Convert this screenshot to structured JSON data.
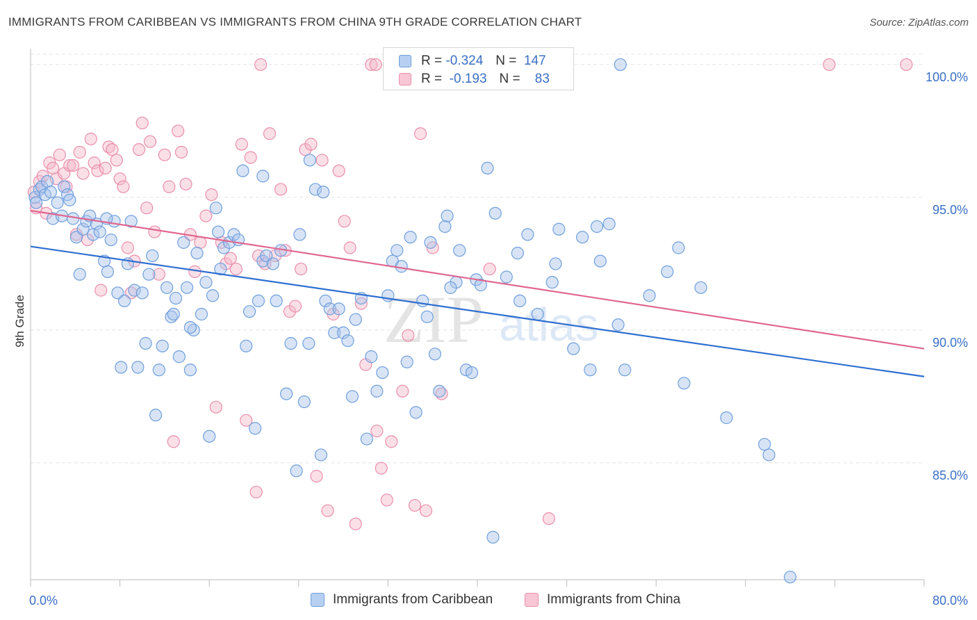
{
  "title": "IMMIGRANTS FROM CARIBBEAN VS IMMIGRANTS FROM CHINA 9TH GRADE CORRELATION CHART",
  "source": "Source: ZipAtlas.com",
  "watermark": {
    "zip": "ZIP",
    "atlas": "atlas"
  },
  "stats": {
    "caribbean": {
      "r_label": "R =",
      "r_value": "-0.324",
      "n_label": "N =",
      "n_value": "147"
    },
    "china": {
      "r_label": "R =",
      "r_value": "-0.193",
      "n_label": "N =",
      "n_value": "83"
    }
  },
  "colors": {
    "caribbean_fill": "#a9c4ec",
    "caribbean_stroke": "#6f9fdc",
    "caribbean_line": "#2f6fd0",
    "china_fill": "#f5b8c9",
    "china_stroke": "#ea8fab",
    "china_line": "#e06690",
    "tick_label": "#3a6fc4",
    "grid": "#e3e3e3"
  },
  "chart_data": {
    "type": "scatter",
    "title": "IMMIGRANTS FROM CARIBBEAN VS IMMIGRANTS FROM CHINA 9TH GRADE CORRELATION CHART",
    "xlabel": "",
    "ylabel": "9th Grade",
    "xlim": [
      0,
      80
    ],
    "ylim": [
      80.6,
      100.6
    ],
    "x_tick_labels": [
      "0.0%",
      "80.0%"
    ],
    "y_ticks": [
      85,
      90,
      95,
      100
    ],
    "y_tick_labels": [
      "85.0%",
      "90.0%",
      "95.0%",
      "100.0%"
    ],
    "grid": true,
    "legend_position": "bottom",
    "series": [
      {
        "name": "Immigrants from Caribbean",
        "trend": {
          "x": [
            0,
            80
          ],
          "y": [
            93.15,
            88.25
          ]
        },
        "points": [
          [
            0.4,
            95.0
          ],
          [
            0.5,
            94.8
          ],
          [
            0.8,
            95.3
          ],
          [
            1.0,
            95.4
          ],
          [
            1.3,
            95.1
          ],
          [
            1.5,
            95.6
          ],
          [
            1.8,
            95.2
          ],
          [
            2.0,
            94.2
          ],
          [
            2.4,
            94.8
          ],
          [
            2.8,
            94.3
          ],
          [
            3.0,
            95.4
          ],
          [
            3.3,
            95.1
          ],
          [
            3.5,
            94.9
          ],
          [
            3.8,
            94.2
          ],
          [
            4.1,
            93.5
          ],
          [
            4.4,
            92.1
          ],
          [
            4.7,
            93.8
          ],
          [
            5.0,
            94.1
          ],
          [
            5.3,
            94.3
          ],
          [
            5.6,
            93.6
          ],
          [
            5.9,
            94.0
          ],
          [
            6.2,
            93.7
          ],
          [
            6.6,
            92.6
          ],
          [
            6.9,
            92.2
          ],
          [
            7.2,
            93.4
          ],
          [
            7.5,
            94.1
          ],
          [
            7.8,
            91.4
          ],
          [
            8.1,
            88.6
          ],
          [
            8.4,
            91.1
          ],
          [
            8.7,
            92.5
          ],
          [
            9.0,
            94.1
          ],
          [
            9.3,
            91.5
          ],
          [
            9.6,
            88.6
          ],
          [
            10.0,
            91.4
          ],
          [
            10.3,
            89.5
          ],
          [
            10.6,
            92.1
          ],
          [
            10.9,
            92.8
          ],
          [
            11.2,
            86.8
          ],
          [
            11.5,
            88.5
          ],
          [
            11.8,
            89.4
          ],
          [
            12.2,
            91.6
          ],
          [
            12.6,
            90.5
          ],
          [
            12.8,
            90.6
          ],
          [
            13.0,
            91.2
          ],
          [
            13.3,
            89.0
          ],
          [
            13.7,
            93.3
          ],
          [
            14.0,
            91.6
          ],
          [
            14.3,
            88.5
          ],
          [
            14.6,
            90.0
          ],
          [
            14.9,
            92.9
          ],
          [
            15.3,
            90.6
          ],
          [
            15.7,
            91.8
          ],
          [
            16.0,
            86.0
          ],
          [
            16.3,
            91.3
          ],
          [
            16.6,
            94.6
          ],
          [
            17.0,
            92.3
          ],
          [
            17.3,
            93.1
          ],
          [
            17.8,
            93.3
          ],
          [
            18.2,
            93.6
          ],
          [
            18.6,
            93.4
          ],
          [
            19.0,
            96.0
          ],
          [
            19.3,
            89.4
          ],
          [
            19.6,
            90.7
          ],
          [
            20.1,
            86.3
          ],
          [
            20.4,
            91.1
          ],
          [
            20.8,
            92.6
          ],
          [
            21.1,
            92.8
          ],
          [
            21.7,
            92.5
          ],
          [
            22.0,
            91.1
          ],
          [
            22.4,
            93.0
          ],
          [
            22.9,
            87.6
          ],
          [
            23.3,
            89.5
          ],
          [
            23.8,
            84.7
          ],
          [
            24.1,
            93.6
          ],
          [
            24.5,
            87.3
          ],
          [
            25.0,
            96.4
          ],
          [
            25.5,
            95.3
          ],
          [
            26.0,
            85.3
          ],
          [
            26.4,
            91.1
          ],
          [
            26.8,
            90.8
          ],
          [
            27.2,
            89.9
          ],
          [
            27.6,
            90.8
          ],
          [
            28.0,
            89.9
          ],
          [
            28.4,
            89.6
          ],
          [
            28.8,
            87.5
          ],
          [
            29.1,
            90.4
          ],
          [
            29.6,
            91.2
          ],
          [
            30.1,
            85.9
          ],
          [
            30.5,
            89.0
          ],
          [
            31.0,
            87.7
          ],
          [
            31.5,
            88.4
          ],
          [
            32.0,
            91.3
          ],
          [
            32.4,
            92.6
          ],
          [
            32.8,
            93.0
          ],
          [
            33.2,
            92.4
          ],
          [
            33.7,
            88.8
          ],
          [
            34.0,
            93.5
          ],
          [
            34.5,
            86.9
          ],
          [
            35.1,
            91.1
          ],
          [
            35.5,
            90.5
          ],
          [
            35.8,
            93.3
          ],
          [
            36.2,
            89.1
          ],
          [
            36.6,
            87.7
          ],
          [
            37.1,
            93.9
          ],
          [
            37.3,
            94.3
          ],
          [
            38.1,
            91.8
          ],
          [
            38.4,
            93.0
          ],
          [
            39.0,
            88.5
          ],
          [
            39.5,
            88.4
          ],
          [
            39.9,
            91.9
          ],
          [
            40.3,
            91.7
          ],
          [
            40.9,
            96.1
          ],
          [
            41.4,
            82.2
          ],
          [
            41.6,
            94.4
          ],
          [
            42.6,
            92.0
          ],
          [
            43.6,
            92.9
          ],
          [
            44.5,
            93.6
          ],
          [
            45.4,
            90.6
          ],
          [
            46.7,
            91.8
          ],
          [
            47.0,
            92.5
          ],
          [
            47.3,
            93.8
          ],
          [
            48.6,
            89.3
          ],
          [
            49.4,
            93.5
          ],
          [
            50.1,
            88.5
          ],
          [
            50.7,
            93.9
          ],
          [
            51.0,
            92.6
          ],
          [
            51.8,
            94.0
          ],
          [
            52.6,
            90.2
          ],
          [
            53.2,
            88.5
          ],
          [
            55.4,
            91.3
          ],
          [
            57.0,
            92.2
          ],
          [
            58.0,
            93.1
          ],
          [
            58.5,
            88.0
          ],
          [
            60.0,
            91.6
          ],
          [
            62.3,
            86.7
          ],
          [
            65.7,
            85.7
          ],
          [
            66.1,
            85.3
          ],
          [
            68.0,
            80.7
          ],
          [
            52.8,
            100.0
          ],
          [
            43.8,
            91.1
          ],
          [
            37.6,
            91.6
          ],
          [
            26.2,
            95.2
          ],
          [
            24.9,
            89.5
          ],
          [
            20.8,
            95.8
          ],
          [
            16.8,
            93.7
          ],
          [
            14.3,
            90.1
          ],
          [
            6.8,
            94.2
          ]
        ]
      },
      {
        "name": "Immigrants from China",
        "trend": {
          "x": [
            0,
            80
          ],
          "y": [
            94.5,
            89.3
          ]
        },
        "points": [
          [
            0.3,
            95.2
          ],
          [
            0.5,
            94.6
          ],
          [
            0.8,
            95.6
          ],
          [
            1.1,
            95.8
          ],
          [
            1.4,
            94.4
          ],
          [
            1.7,
            96.3
          ],
          [
            2.0,
            96.1
          ],
          [
            2.3,
            95.7
          ],
          [
            2.6,
            96.6
          ],
          [
            3.0,
            95.9
          ],
          [
            3.2,
            95.4
          ],
          [
            3.5,
            96.2
          ],
          [
            3.8,
            96.2
          ],
          [
            4.1,
            93.6
          ],
          [
            4.4,
            96.7
          ],
          [
            4.7,
            95.9
          ],
          [
            5.1,
            93.4
          ],
          [
            5.4,
            97.2
          ],
          [
            5.7,
            96.3
          ],
          [
            6.0,
            96.0
          ],
          [
            6.3,
            91.5
          ],
          [
            6.7,
            96.1
          ],
          [
            7.0,
            96.9
          ],
          [
            7.3,
            96.8
          ],
          [
            7.7,
            96.4
          ],
          [
            8.0,
            95.7
          ],
          [
            8.3,
            95.4
          ],
          [
            8.7,
            93.1
          ],
          [
            9.0,
            91.4
          ],
          [
            9.3,
            92.6
          ],
          [
            9.7,
            96.8
          ],
          [
            10.0,
            97.8
          ],
          [
            10.4,
            94.6
          ],
          [
            10.7,
            97.1
          ],
          [
            11.1,
            93.7
          ],
          [
            11.5,
            92.1
          ],
          [
            12.0,
            96.6
          ],
          [
            12.4,
            95.4
          ],
          [
            12.8,
            85.8
          ],
          [
            13.2,
            97.5
          ],
          [
            13.5,
            96.7
          ],
          [
            13.9,
            95.5
          ],
          [
            14.3,
            93.6
          ],
          [
            14.7,
            92.2
          ],
          [
            15.2,
            93.3
          ],
          [
            15.7,
            94.3
          ],
          [
            16.2,
            95.1
          ],
          [
            16.6,
            87.1
          ],
          [
            17.1,
            93.3
          ],
          [
            17.5,
            92.5
          ],
          [
            17.9,
            92.7
          ],
          [
            18.4,
            92.3
          ],
          [
            18.9,
            97.0
          ],
          [
            19.3,
            86.6
          ],
          [
            19.7,
            96.5
          ],
          [
            20.2,
            83.9
          ],
          [
            20.6,
            100.0
          ],
          [
            21.0,
            92.5
          ],
          [
            21.4,
            97.4
          ],
          [
            21.9,
            92.8
          ],
          [
            22.4,
            95.3
          ],
          [
            22.8,
            93.0
          ],
          [
            23.2,
            90.7
          ],
          [
            23.7,
            90.9
          ],
          [
            24.2,
            92.3
          ],
          [
            24.6,
            96.8
          ],
          [
            25.1,
            97.0
          ],
          [
            25.6,
            84.5
          ],
          [
            26.1,
            96.4
          ],
          [
            26.6,
            83.2
          ],
          [
            27.1,
            90.6
          ],
          [
            27.6,
            96.0
          ],
          [
            28.1,
            94.1
          ],
          [
            28.6,
            93.1
          ],
          [
            29.1,
            82.7
          ],
          [
            29.6,
            91.0
          ],
          [
            30.0,
            88.7
          ],
          [
            30.5,
            100.0
          ],
          [
            31.0,
            86.2
          ],
          [
            31.4,
            84.8
          ],
          [
            31.9,
            83.6
          ],
          [
            32.3,
            85.8
          ],
          [
            33.3,
            87.7
          ],
          [
            33.8,
            89.8
          ],
          [
            34.4,
            83.4
          ],
          [
            34.9,
            97.4
          ],
          [
            35.4,
            83.2
          ],
          [
            36.0,
            93.1
          ],
          [
            36.8,
            87.6
          ],
          [
            41.1,
            92.3
          ],
          [
            46.4,
            82.9
          ],
          [
            71.5,
            100.0
          ],
          [
            78.4,
            100.0
          ],
          [
            20.4,
            92.8
          ],
          [
            30.9,
            100.0
          ]
        ]
      }
    ]
  },
  "legend": {
    "caribbean": "Immigrants from Caribbean",
    "china": "Immigrants from China"
  }
}
